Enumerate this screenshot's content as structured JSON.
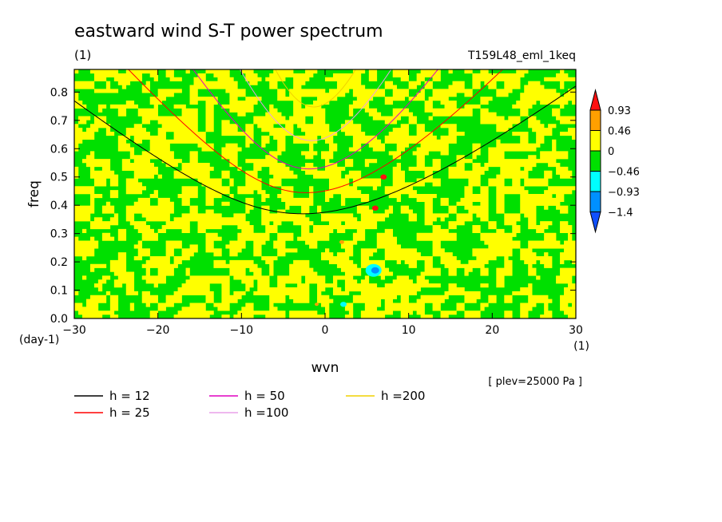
{
  "chart_data": {
    "type": "heatmap",
    "title": "eastward wind S-T power spectrum",
    "subtitle_left": "(1)",
    "subtitle_right": "T159L48_eml_1keq",
    "xlabel": "wvn",
    "ylabel": "freq",
    "x_unit": "(1)",
    "y_unit": "(day-1)",
    "xlim": [
      -30,
      30
    ],
    "ylim": [
      0,
      0.88
    ],
    "x_ticks": [
      -30,
      -20,
      -10,
      0,
      10,
      20,
      30
    ],
    "x_tick_labels": [
      "−30",
      "−20",
      "−10",
      "0",
      "10",
      "20",
      "30"
    ],
    "y_ticks": [
      0.0,
      0.1,
      0.2,
      0.3,
      0.4,
      0.5,
      0.6,
      0.7,
      0.8
    ],
    "y_tick_labels": [
      "0.0",
      "0.1",
      "0.2",
      "0.3",
      "0.4",
      "0.5",
      "0.6",
      "0.7",
      "0.8"
    ],
    "annotation": "[ plev=25000 Pa ]",
    "colorbar": {
      "labels": [
        "0.93",
        "0.46",
        "0",
        "−0.46",
        "−0.93",
        "−1.4"
      ],
      "colors": [
        "#ff1010",
        "#ffa000",
        "#ffff00",
        "#00e000",
        "#00ffff",
        "#0090ff",
        "#1050ff"
      ],
      "levels": [
        0.93,
        0.46,
        0,
        -0.46,
        -0.93,
        -1.4
      ]
    },
    "field_description_colors": {
      "positive": "#ffff00",
      "negative": "#00e000",
      "strong_positive": "#ffa000",
      "extreme_positive": "#ff1010",
      "strong_negative": "#00ffff",
      "extreme_negative": "#0090ff"
    },
    "dispersion_curves": [
      {
        "label": "h = 12",
        "h": 12,
        "color": "#000000"
      },
      {
        "label": "h = 25",
        "h": 25,
        "color": "#ff0000"
      },
      {
        "label": "h = 50",
        "h": 50,
        "color": "#e000c0"
      },
      {
        "label": "h =100",
        "h": 100,
        "color": "#e8a0e8"
      },
      {
        "label": "h =200",
        "h": 200,
        "color": "#f0d000"
      }
    ]
  }
}
